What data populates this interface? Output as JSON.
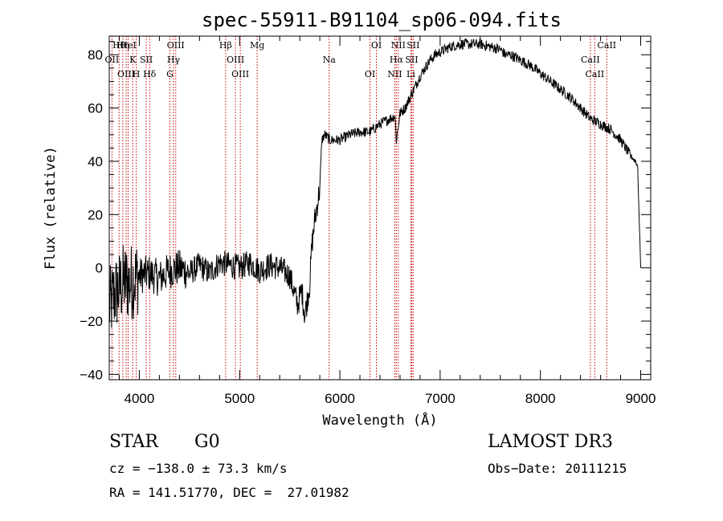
{
  "chart_data": {
    "type": "line",
    "title": "spec-55911-B91104_sp06-094.fits",
    "xlabel": "Wavelength (Å)",
    "ylabel": "Flux (relative)",
    "xlim": [
      3700,
      9100
    ],
    "ylim": [
      -42,
      87
    ],
    "xticks": [
      4000,
      5000,
      6000,
      7000,
      8000,
      9000
    ],
    "yticks": [
      -40,
      -20,
      0,
      20,
      40,
      60,
      80
    ],
    "series": [
      {
        "name": "flux",
        "x": [
          3700,
          3750,
          3800,
          3850,
          3900,
          3950,
          4000,
          4100,
          4200,
          4300,
          4400,
          4500,
          4600,
          4700,
          4800,
          4900,
          5000,
          5100,
          5200,
          5300,
          5400,
          5500,
          5550,
          5580,
          5620,
          5650,
          5700,
          5720,
          5750,
          5780,
          5800,
          5820,
          5850,
          5900,
          6000,
          6100,
          6200,
          6300,
          6400,
          6500,
          6550,
          6563,
          6600,
          6650,
          6700,
          6750,
          6800,
          6850,
          6900,
          6950,
          7000,
          7100,
          7200,
          7300,
          7400,
          7500,
          7600,
          7650,
          7700,
          7800,
          7900,
          8000,
          8100,
          8200,
          8300,
          8400,
          8500,
          8600,
          8700,
          8800,
          8850,
          8900,
          8950,
          8970,
          9000
        ],
        "y": [
          -15,
          -10,
          -8,
          -5,
          -6,
          -4,
          -3,
          -2,
          -4,
          -1,
          0,
          -2,
          1,
          -2,
          2,
          1,
          0,
          2,
          -1,
          1,
          0,
          -3,
          -10,
          -14,
          -8,
          -18,
          -6,
          8,
          18,
          25,
          30,
          48,
          50,
          48,
          48,
          50,
          51,
          51,
          54,
          56,
          57,
          48,
          58,
          60,
          64,
          68,
          72,
          75,
          78,
          80,
          81,
          83,
          84,
          84,
          84,
          83,
          82,
          80,
          80,
          78,
          76,
          73,
          70,
          67,
          64,
          60,
          56,
          54,
          52,
          48,
          45,
          42,
          40,
          38,
          0
        ]
      }
    ],
    "lines": [
      {
        "name": "Hθ",
        "x": 3798
      },
      {
        "name": "OII",
        "x": 3727
      },
      {
        "name": "OIII",
        "x": 3869
      },
      {
        "name": "Hη",
        "x": 3835
      },
      {
        "name": "K",
        "x": 3934
      },
      {
        "name": "H",
        "x": 3969
      },
      {
        "name": "HeI",
        "x": 3889
      },
      {
        "name": "SII",
        "x": 4069
      },
      {
        "name": "Hδ",
        "x": 4102
      },
      {
        "name": "OIII",
        "x": 4363
      },
      {
        "name": "Hγ",
        "x": 4341
      },
      {
        "name": "G",
        "x": 4305
      },
      {
        "name": "Hβ",
        "x": 4861
      },
      {
        "name": "OIII",
        "x": 4959
      },
      {
        "name": "OIII",
        "x": 5007
      },
      {
        "name": "Mg",
        "x": 5175
      },
      {
        "name": "Na",
        "x": 5893
      },
      {
        "name": "OI",
        "x": 6300
      },
      {
        "name": "OI",
        "x": 6364
      },
      {
        "name": "Hα",
        "x": 6563
      },
      {
        "name": "NII",
        "x": 6548
      },
      {
        "name": "NII",
        "x": 6583
      },
      {
        "name": "SII",
        "x": 6716
      },
      {
        "name": "Li",
        "x": 6708
      },
      {
        "name": "SII",
        "x": 6731
      },
      {
        "name": "CaII",
        "x": 8498
      },
      {
        "name": "CaII",
        "x": 8542
      },
      {
        "name": "CaII",
        "x": 8662
      }
    ],
    "colors": {
      "spectrum": "#000000",
      "lines": "#cc0000",
      "axes": "#000000"
    }
  },
  "info": {
    "class": "STAR",
    "subclass": "G0",
    "survey": "LAMOST DR3",
    "cz": "cz = −138.0 ± 73.3 km/s",
    "obs_date": "Obs−Date: 20111215",
    "radec": "RA = 141.51770, DEC =  27.01982"
  }
}
